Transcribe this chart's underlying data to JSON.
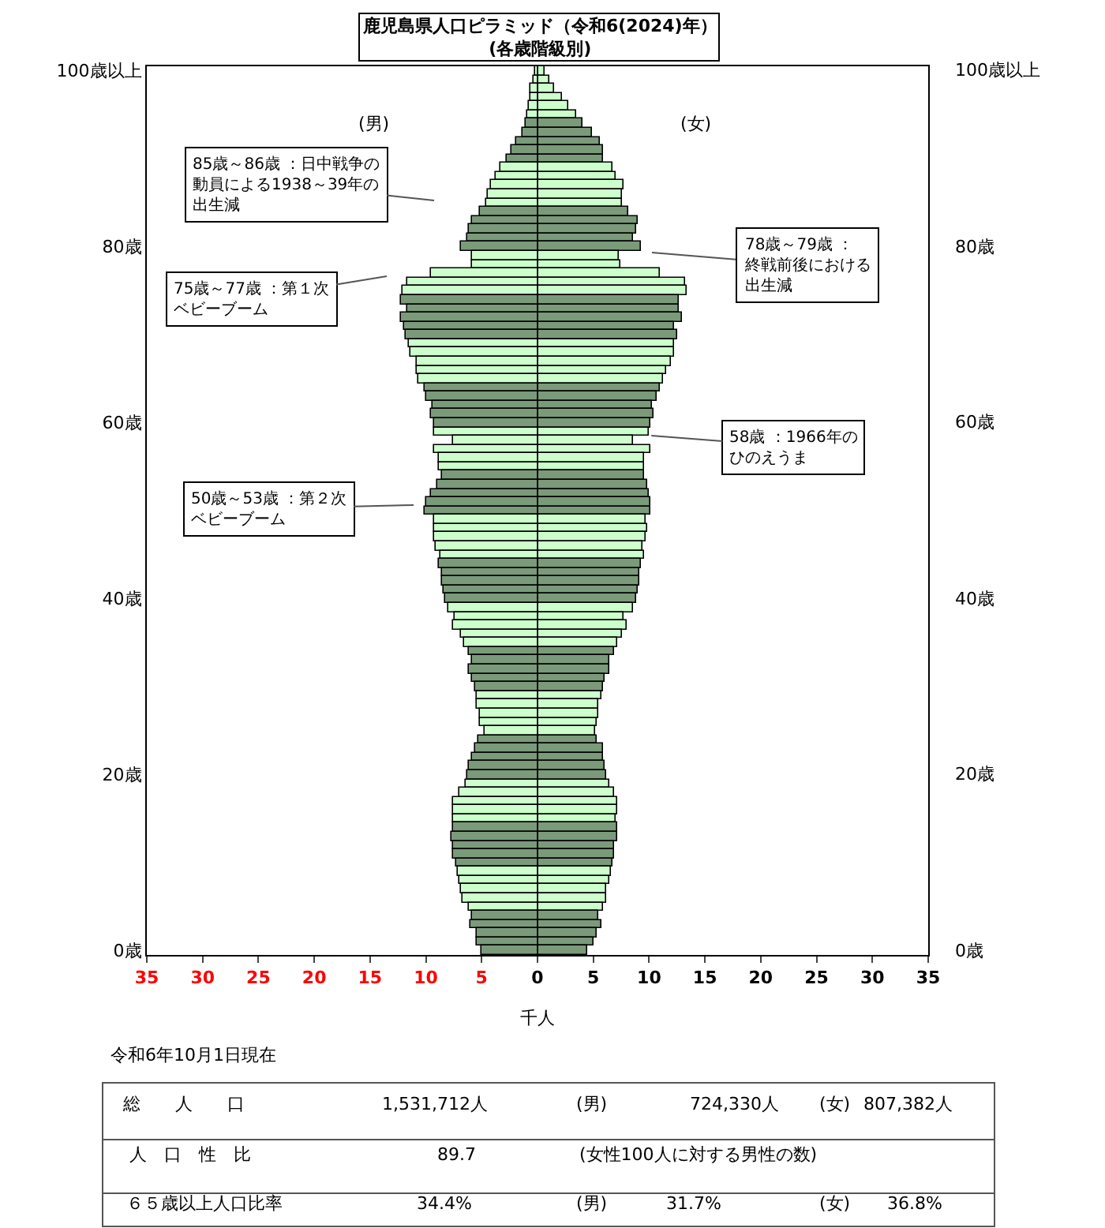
{
  "chart_data": {
    "type": "bar",
    "orientation": "horizontal",
    "title": "鹿児島県人口ピラミッド（令和6(2024)年）",
    "subtitle": "(各歳階級別)",
    "xlabel": "千人",
    "categories": [
      "100歳以上",
      null,
      null,
      null,
      null,
      null,
      null,
      null,
      null,
      null,
      null,
      null,
      null,
      null,
      null,
      null,
      null,
      null,
      null,
      null,
      "80歳",
      null,
      null,
      null,
      null,
      null,
      null,
      null,
      null,
      null,
      null,
      null,
      null,
      null,
      null,
      null,
      null,
      null,
      null,
      null,
      "60歳",
      null,
      null,
      null,
      null,
      null,
      null,
      null,
      null,
      null,
      null,
      null,
      null,
      null,
      null,
      null,
      null,
      null,
      null,
      null,
      "40歳",
      null,
      null,
      null,
      null,
      null,
      null,
      null,
      null,
      null,
      null,
      null,
      null,
      null,
      null,
      null,
      null,
      null,
      null,
      null,
      "20歳",
      null,
      null,
      null,
      null,
      null,
      null,
      null,
      null,
      null,
      null,
      null,
      null,
      null,
      null,
      null,
      null,
      null,
      null,
      null,
      "0歳"
    ],
    "series": [
      {
        "name": "(男)",
        "colors": [
          "#ccffcc",
          "#ccffcc",
          "#ccffcc",
          "#ccffcc",
          "#ccffcc",
          "#ccffcc",
          "#7a9a7a",
          "#7a9a7a",
          "#7a9a7a",
          "#7a9a7a",
          "#7a9a7a",
          "#ccffcc",
          "#ccffcc",
          "#ccffcc",
          "#ccffcc",
          "#ccffcc",
          "#7a9a7a",
          "#7a9a7a",
          "#7a9a7a",
          "#7a9a7a",
          "#7a9a7a",
          "#ccffcc",
          "#ccffcc",
          "#ccffcc",
          "#ccffcc",
          "#ccffcc",
          "#7a9a7a",
          "#7a9a7a",
          "#7a9a7a",
          "#7a9a7a",
          "#7a9a7a",
          "#ccffcc",
          "#ccffcc",
          "#ccffcc",
          "#ccffcc",
          "#ccffcc",
          "#7a9a7a",
          "#7a9a7a",
          "#7a9a7a",
          "#7a9a7a",
          "#7a9a7a",
          "#ccffcc",
          "#ccffcc",
          "#ccffcc",
          "#ccffcc",
          "#ccffcc",
          "#7a9a7a",
          "#7a9a7a",
          "#7a9a7a",
          "#7a9a7a",
          "#7a9a7a",
          "#ccffcc",
          "#ccffcc",
          "#ccffcc",
          "#ccffcc",
          "#ccffcc",
          "#7a9a7a",
          "#7a9a7a",
          "#7a9a7a",
          "#7a9a7a",
          "#7a9a7a",
          "#ccffcc",
          "#ccffcc",
          "#ccffcc",
          "#ccffcc",
          "#ccffcc",
          "#7a9a7a",
          "#7a9a7a",
          "#7a9a7a",
          "#7a9a7a",
          "#7a9a7a",
          "#ccffcc",
          "#ccffcc",
          "#ccffcc",
          "#ccffcc",
          "#ccffcc",
          "#7a9a7a",
          "#7a9a7a",
          "#7a9a7a",
          "#7a9a7a",
          "#7a9a7a",
          "#ccffcc",
          "#ccffcc",
          "#ccffcc",
          "#ccffcc",
          "#ccffcc",
          "#7a9a7a",
          "#7a9a7a",
          "#7a9a7a",
          "#7a9a7a",
          "#7a9a7a",
          "#ccffcc",
          "#ccffcc",
          "#ccffcc",
          "#ccffcc",
          "#ccffcc",
          "#7a9a7a",
          "#7a9a7a",
          "#7a9a7a",
          "#7a9a7a",
          "#7a9a7a"
        ],
        "values": [
          -0.2,
          -0.4,
          -0.6,
          -0.7,
          -0.8,
          -0.9,
          -1.0,
          -1.4,
          -1.9,
          -2.3,
          -2.7,
          -3.3,
          -3.7,
          -4.2,
          -4.5,
          -4.6,
          -5.2,
          -5.9,
          -6.1,
          -6.3,
          -6.8,
          -5.8,
          -5.8,
          -9.5,
          -11.7,
          -12.1,
          -12.2,
          -11.7,
          -12.3,
          -11.9,
          -11.8,
          -11.5,
          -11.4,
          -10.8,
          -10.8,
          -10.7,
          -10.1,
          -10.0,
          -9.4,
          -9.5,
          -9.3,
          -9.2,
          -7.5,
          -9.2,
          -8.9,
          -8.9,
          -8.6,
          -9.0,
          -9.6,
          -9.9,
          -10.1,
          -9.3,
          -9.3,
          -9.2,
          -9.1,
          -8.7,
          -8.8,
          -8.6,
          -8.5,
          -8.4,
          -8.3,
          -8.0,
          -7.4,
          -7.5,
          -6.9,
          -6.6,
          -6.1,
          -5.9,
          -6.1,
          -5.8,
          -5.6,
          -5.5,
          -5.4,
          -5.2,
          -5.1,
          -4.8,
          -5.3,
          -5.6,
          -5.8,
          -6.2,
          -6.3,
          -6.4,
          -7.0,
          -7.5,
          -7.6,
          -7.5,
          -7.6,
          -7.7,
          -7.5,
          -7.5,
          -7.3,
          -7.2,
          -7.0,
          -6.8,
          -6.7,
          -6.1,
          -5.8,
          -6.0,
          -5.5,
          -5.4,
          -5.0
        ]
      },
      {
        "name": "(女)",
        "colors": [
          "#ccffcc",
          "#ccffcc",
          "#ccffcc",
          "#ccffcc",
          "#ccffcc",
          "#ccffcc",
          "#7a9a7a",
          "#7a9a7a",
          "#7a9a7a",
          "#7a9a7a",
          "#7a9a7a",
          "#ccffcc",
          "#ccffcc",
          "#ccffcc",
          "#ccffcc",
          "#ccffcc",
          "#7a9a7a",
          "#7a9a7a",
          "#7a9a7a",
          "#7a9a7a",
          "#7a9a7a",
          "#ccffcc",
          "#ccffcc",
          "#ccffcc",
          "#ccffcc",
          "#ccffcc",
          "#7a9a7a",
          "#7a9a7a",
          "#7a9a7a",
          "#7a9a7a",
          "#7a9a7a",
          "#ccffcc",
          "#ccffcc",
          "#ccffcc",
          "#ccffcc",
          "#ccffcc",
          "#7a9a7a",
          "#7a9a7a",
          "#7a9a7a",
          "#7a9a7a",
          "#7a9a7a",
          "#ccffcc",
          "#ccffcc",
          "#ccffcc",
          "#ccffcc",
          "#ccffcc",
          "#7a9a7a",
          "#7a9a7a",
          "#7a9a7a",
          "#7a9a7a",
          "#7a9a7a",
          "#ccffcc",
          "#ccffcc",
          "#ccffcc",
          "#ccffcc",
          "#ccffcc",
          "#7a9a7a",
          "#7a9a7a",
          "#7a9a7a",
          "#7a9a7a",
          "#7a9a7a",
          "#ccffcc",
          "#ccffcc",
          "#ccffcc",
          "#ccffcc",
          "#ccffcc",
          "#7a9a7a",
          "#7a9a7a",
          "#7a9a7a",
          "#7a9a7a",
          "#7a9a7a",
          "#ccffcc",
          "#ccffcc",
          "#ccffcc",
          "#ccffcc",
          "#ccffcc",
          "#7a9a7a",
          "#7a9a7a",
          "#7a9a7a",
          "#7a9a7a",
          "#7a9a7a",
          "#ccffcc",
          "#ccffcc",
          "#ccffcc",
          "#ccffcc",
          "#ccffcc",
          "#7a9a7a",
          "#7a9a7a",
          "#7a9a7a",
          "#7a9a7a",
          "#7a9a7a",
          "#ccffcc",
          "#ccffcc",
          "#ccffcc",
          "#ccffcc",
          "#ccffcc",
          "#7a9a7a",
          "#7a9a7a",
          "#7a9a7a",
          "#7a9a7a",
          "#7a9a7a"
        ],
        "values": [
          0.7,
          1.0,
          1.5,
          2.2,
          2.8,
          3.5,
          4.1,
          4.9,
          5.6,
          5.8,
          5.9,
          6.7,
          7.0,
          7.7,
          7.5,
          7.6,
          8.1,
          9.0,
          8.8,
          8.6,
          9.2,
          7.3,
          7.4,
          11.0,
          13.2,
          13.4,
          12.6,
          12.6,
          13.0,
          12.2,
          12.5,
          12.2,
          12.2,
          11.9,
          11.5,
          11.2,
          10.9,
          10.7,
          10.2,
          10.4,
          10.1,
          9.9,
          8.5,
          10.1,
          9.6,
          9.6,
          9.5,
          9.8,
          9.9,
          10.1,
          10.1,
          9.7,
          9.8,
          9.7,
          9.4,
          9.5,
          9.2,
          9.1,
          9.1,
          9.0,
          8.9,
          8.6,
          7.7,
          8.0,
          7.5,
          7.1,
          6.9,
          6.4,
          6.4,
          6.0,
          5.8,
          5.7,
          5.5,
          5.4,
          5.3,
          5.2,
          5.3,
          5.8,
          5.9,
          6.0,
          6.1,
          6.5,
          6.9,
          7.2,
          7.1,
          7.0,
          7.1,
          7.2,
          6.9,
          6.8,
          6.7,
          6.6,
          6.5,
          6.1,
          6.1,
          5.8,
          5.5,
          5.7,
          5.3,
          5.0,
          4.4
        ]
      }
    ],
    "xlim": [
      -35,
      35
    ],
    "xticks": [
      {
        "value": -35,
        "label": "35"
      },
      {
        "value": -30,
        "label": "30"
      },
      {
        "value": -25,
        "label": "25"
      },
      {
        "value": -20,
        "label": "20"
      },
      {
        "value": -15,
        "label": "15"
      },
      {
        "value": -10,
        "label": "10"
      },
      {
        "value": -5,
        "label": "5"
      },
      0,
      5,
      10,
      15,
      20,
      25,
      30,
      35
    ],
    "stacked": true,
    "legend": false,
    "annotations": [
      "85歳～86歳 ：日中戦争の動員による1938～39年の出生減",
      "75歳～77歳 ：第１次ベビーブーム",
      "50歳～53歳 ：第２次ベビーブーム",
      "78歳～79歳 ：終戦前後における出生減",
      {
        "text": "58歳 ：1966年のひのえうま",
        "x": 10.2
      },
      "令和6年10月1日現在",
      "総　　人　　口",
      "1,531,712人",
      "(男)",
      "724,330人",
      "(女)",
      "807,382人",
      "人　口　性　比",
      "89.7",
      "(女性100人に対する男性の数)",
      "６５歳以上人口比率",
      "34.4%",
      "(男)",
      "31.7%",
      "(女)",
      "36.8%"
    ]
  }
}
